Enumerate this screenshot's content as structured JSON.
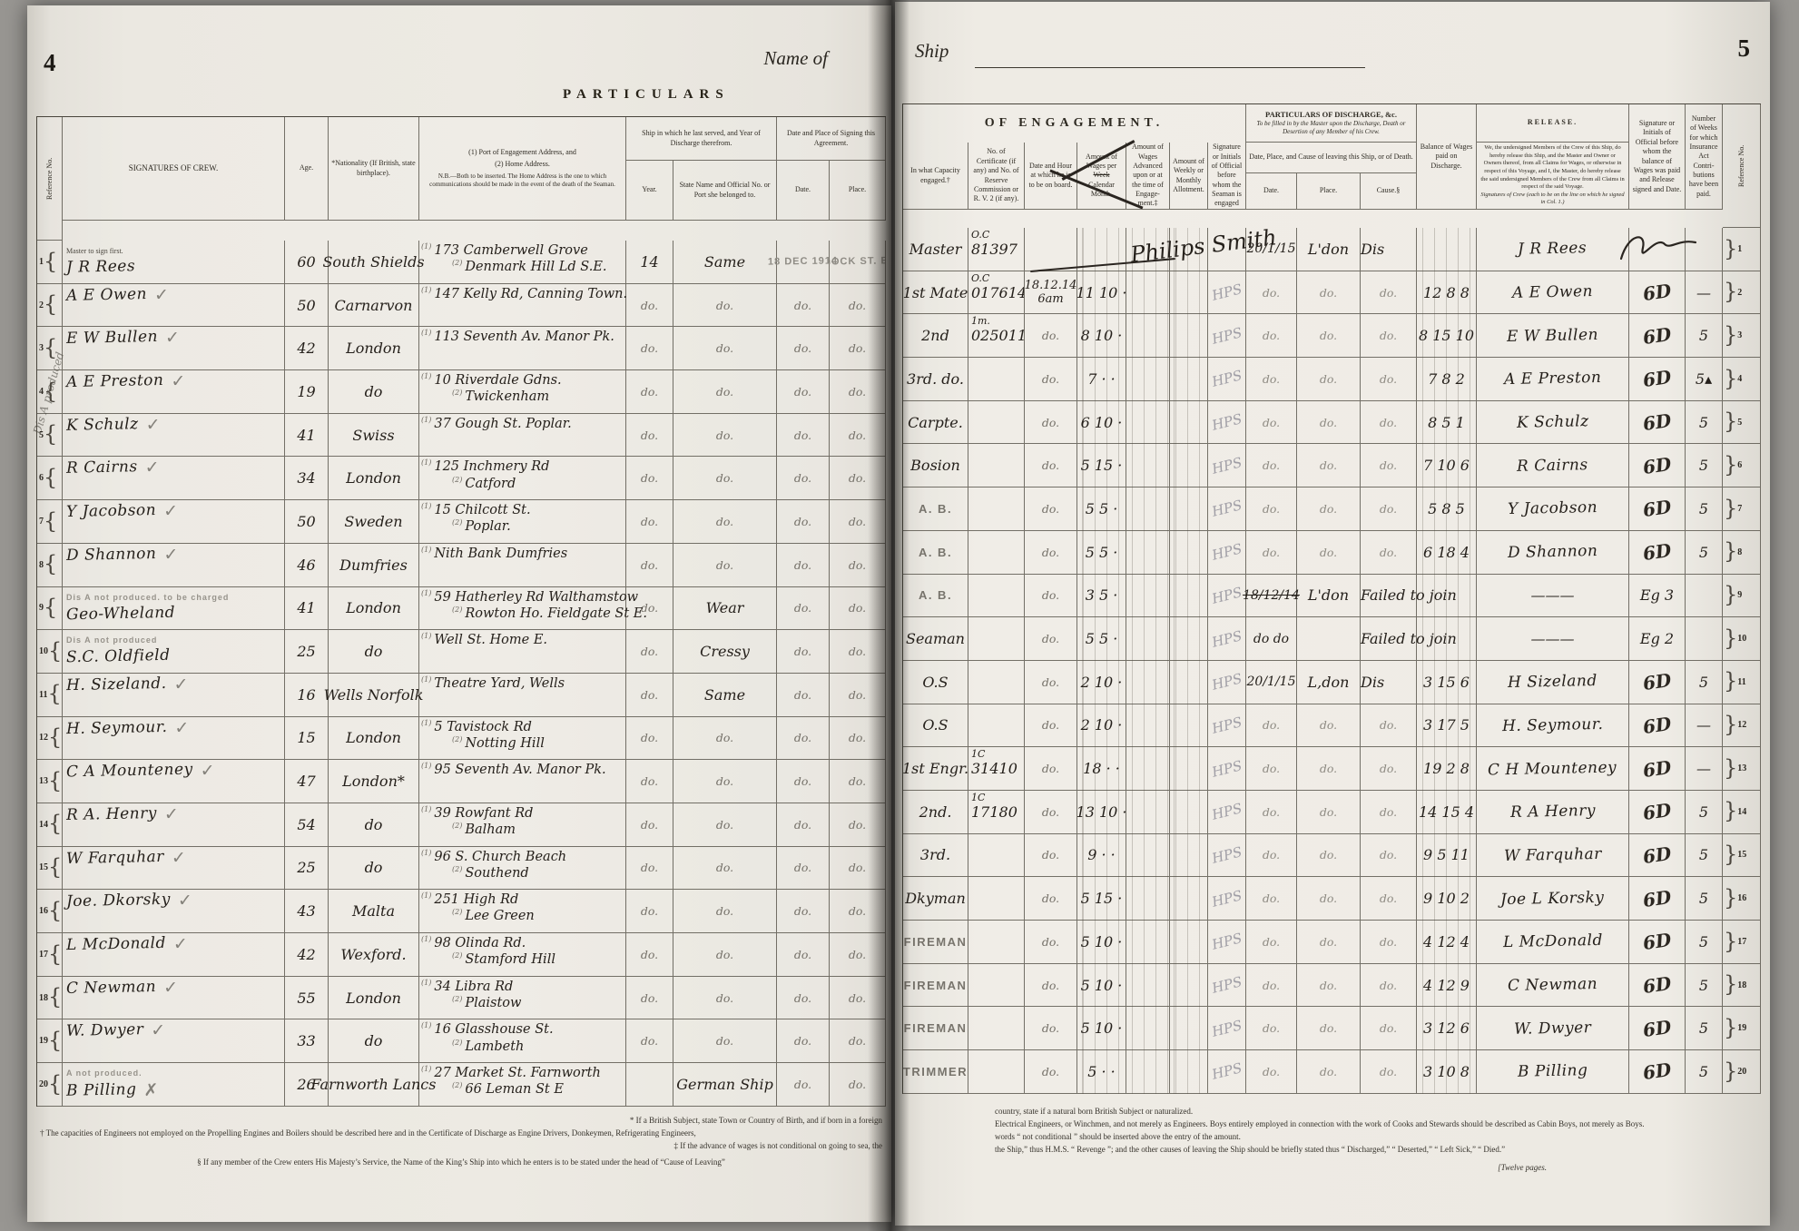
{
  "book": {
    "page_left_no": "4",
    "page_right_no": "5",
    "name_of_label": "Name of",
    "ship_label": "Ship",
    "pages_note": "[Twelve pages."
  },
  "left": {
    "title": "PARTICULARS",
    "margin_note": "Dis A produced",
    "stamp_date": "18 DEC 1914",
    "stamp_place": "DOCK ST. E.",
    "h": {
      "ref": "Reference No.",
      "sig": "SIGNATURES  OF  CREW.",
      "age": "Age.",
      "nat": "*Nationality (If British, state birthplace).",
      "addr1": "(1) Port of Engagement Address, and",
      "addr2": "(2) Home Address.",
      "addr3": "N.B.—Both to be inserted.  The Home Address is the one to which communications should be made in the event of the death of the Seaman.",
      "shipgrp": "Ship in which he last served, and Year of Discharge therefrom.",
      "year": "Year.",
      "name": "State Name and Official No. or Port she belonged to.",
      "dategrp": "Date and Place of Signing this Agreement.",
      "date": "Date.",
      "place": "Place."
    },
    "nums": [
      "1.",
      "2.",
      "3.",
      "4.",
      "5.",
      "6.",
      "7.",
      "8."
    ],
    "rows": [
      {
        "ref": "1",
        "note": "Master to sign first.",
        "sig": "J R Rees",
        "mark": "",
        "age": "60",
        "nat": "South Shields",
        "a1": "173 Camberwell Grove",
        "a2": "Denmark Hill Ld S.E.",
        "year": "14",
        "ship": "Same",
        "date": "STAMP",
        "place": "STAMP"
      },
      {
        "ref": "2",
        "sig": "A E Owen",
        "mark": "check",
        "age": "50",
        "nat": "Carnarvon",
        "a1": "147 Kelly Rd, Canning Town.",
        "a2": "",
        "year": "do.",
        "ship": "do.",
        "date": "do.",
        "place": "do."
      },
      {
        "ref": "3",
        "sig": "E W Bullen",
        "mark": "check",
        "age": "42",
        "nat": "London",
        "a1": "113 Seventh Av. Manor Pk.",
        "a2": "",
        "year": "do.",
        "ship": "do.",
        "date": "do.",
        "place": "do."
      },
      {
        "ref": "4",
        "sig": "A E Preston",
        "mark": "check",
        "age": "19",
        "nat": "do",
        "a1": "10 Riverdale Gdns.",
        "a2": "Twickenham",
        "year": "do.",
        "ship": "do.",
        "date": "do.",
        "place": "do."
      },
      {
        "ref": "5",
        "sig": "K Schulz",
        "mark": "check",
        "age": "41",
        "nat": "Swiss",
        "a1": "37 Gough St. Poplar.",
        "a2": "",
        "year": "do.",
        "ship": "do.",
        "date": "do.",
        "place": "do."
      },
      {
        "ref": "6",
        "sig": "R Cairns",
        "mark": "check",
        "age": "34",
        "nat": "London",
        "a1": "125 Inchmery Rd",
        "a2": "Catford",
        "year": "do.",
        "ship": "do.",
        "date": "do.",
        "place": "do."
      },
      {
        "ref": "7",
        "sig": "Y Jacobson",
        "mark": "check",
        "age": "50",
        "nat": "Sweden",
        "a1": "15 Chilcott St.",
        "a2": "Poplar.",
        "year": "do.",
        "ship": "do.",
        "date": "do.",
        "place": "do."
      },
      {
        "ref": "8",
        "sig": "D Shannon",
        "mark": "check",
        "age": "46",
        "nat": "Dumfries",
        "a1": "Nith Bank Dumfries",
        "a2": "",
        "year": "do.",
        "ship": "do.",
        "date": "do.",
        "place": "do."
      },
      {
        "ref": "9",
        "note": "Dis A not produced.      to be charged",
        "notestamp": true,
        "sig": "Geo-Wheland",
        "mark": "",
        "age": "41",
        "nat": "London",
        "a1": "59 Hatherley Rd Walthamstow",
        "a2": "Rowton Ho. Fieldgate St E.",
        "year": "do.",
        "ship": "Wear",
        "date": "do.",
        "place": "do."
      },
      {
        "ref": "10",
        "note": "Dis A not produced",
        "notestamp": true,
        "sig": "S.C. Oldfield",
        "mark": "",
        "age": "25",
        "nat": "do",
        "a1": "Well St. Home E.",
        "a2": "",
        "year": "do.",
        "ship": "Cressy",
        "date": "do.",
        "place": "do."
      },
      {
        "ref": "11",
        "sig": "H. Sizeland.",
        "mark": "check",
        "age": "16",
        "nat": "Wells Norfolk",
        "a1": "Theatre Yard, Wells",
        "a2": "",
        "year": "do.",
        "ship": "Same",
        "date": "do.",
        "place": "do."
      },
      {
        "ref": "12",
        "sig": "H. Seymour.",
        "mark": "check",
        "age": "15",
        "nat": "London",
        "a1": "5 Tavistock Rd",
        "a2": "Notting Hill",
        "year": "do.",
        "ship": "do.",
        "date": "do.",
        "place": "do."
      },
      {
        "ref": "13",
        "sig": "C A Mounteney",
        "mark": "check",
        "age": "47",
        "nat": "London*",
        "a1": "95 Seventh Av. Manor Pk.",
        "a2": "",
        "year": "do.",
        "ship": "do.",
        "date": "do.",
        "place": "do."
      },
      {
        "ref": "14",
        "sig": "R A. Henry",
        "mark": "check",
        "age": "54",
        "nat": "do",
        "a1": "39 Rowfant Rd",
        "a2": "Balham",
        "year": "do.",
        "ship": "do.",
        "date": "do.",
        "place": "do."
      },
      {
        "ref": "15",
        "sig": "W Farquhar",
        "mark": "check",
        "age": "25",
        "nat": "do",
        "a1": "96 S. Church Beach",
        "a2": "Southend",
        "year": "do.",
        "ship": "do.",
        "date": "do.",
        "place": "do."
      },
      {
        "ref": "16",
        "sig": "Joe. Dkorsky",
        "mark": "check",
        "age": "43",
        "nat": "Malta",
        "a1": "251 High Rd",
        "a2": "Lee Green",
        "year": "do.",
        "ship": "do.",
        "date": "do.",
        "place": "do."
      },
      {
        "ref": "17",
        "sig": "L McDonald",
        "mark": "check",
        "age": "42",
        "nat": "Wexford.",
        "a1": "98 Olinda Rd.",
        "a2": "Stamford Hill",
        "year": "do.",
        "ship": "do.",
        "date": "do.",
        "place": "do."
      },
      {
        "ref": "18",
        "sig": "C Newman",
        "mark": "check",
        "age": "55",
        "nat": "London",
        "a1": "34 Libra Rd",
        "a2": "Plaistow",
        "year": "do.",
        "ship": "do.",
        "date": "do.",
        "place": "do."
      },
      {
        "ref": "19",
        "sig": "W. Dwyer",
        "mark": "check",
        "age": "33",
        "nat": "do",
        "a1": "16 Glasshouse St.",
        "a2": "Lambeth",
        "year": "do.",
        "ship": "do.",
        "date": "do.",
        "place": "do."
      },
      {
        "ref": "20",
        "note": "A not produced.",
        "notestamp": true,
        "sig": "B Pilling",
        "mark": "cross",
        "age": "26",
        "nat": "Farnworth Lancs",
        "a1": "27 Market St. Farnworth",
        "a2": "66 Leman St E",
        "year": "",
        "ship": "German Ship",
        "date": "do.",
        "place": "do."
      }
    ],
    "footnotes": {
      "f1": "* If a British Subject, state Town or Country of Birth, and if born in a foreign",
      "f2": "† The capacities of Engineers not employed on the Propelling Engines and Boilers should be described here and in the Certificate of Discharge as Engine Drivers, Donkeymen, Refrigerating Engineers,",
      "f3": "‡ If the advance of wages is not conditional on going to sea, the",
      "f4": "§ If any member of the Crew enters His Majesty’s Service, the Name of the King’s Ship into which he enters is to be stated under the head of “Cause of Leaving”"
    }
  },
  "right": {
    "row1_scrawl": "Philips Smith",
    "h": {
      "eng_title": "OF  ENGAGEMENT.",
      "cap": "In what Capacity engaged.†",
      "cert": "No. of Certificate (if any) and No. of Reserve Commis­sion or R. V. 2 (if any).",
      "dh": "Date and Hour at which he is to be on board.",
      "wage1": "Amount of Wages per",
      "wage_strike": "Week",
      "wage2": "Calendar Month.",
      "adv": "Amount of Wages Advanced upon or at the time of Engage­ment.‡",
      "allot": "Amount of Weekly or Monthly Allotment.",
      "off": "Signa­ture or Initials of Official before whom the Sea­man is engaged",
      "dis_title1": "PARTICULARS  OF  DISCHARGE,  &c.",
      "dis_title2": "To be filled in by the Master upon the Discharge, Death or Desertion of any Member of his Crew.",
      "dis_grp": "Date, Place, and Cause of leaving this Ship, or of Death.",
      "ddate": "Date.",
      "dplace": "Place.",
      "dcause": "Cause.§",
      "bal": "Balance of Wages paid on Discharge.",
      "rel_title": "RELEASE.",
      "rel_body": "We, the undersigned Members of the Crew of this Ship, do hereby release this Ship, and the Master and Owner or Owners thereof, from all Claims for Wages, or otherwise in respect of this Voyage, and I, the Master, do hereby release the said undersigned Members of the Crew from all Claims in respect of the said Voyage.",
      "rel_body2": "Signatures of Crew (each to be on the line on which he signed in Col. 1.)",
      "off2": "Signature or Initials of Official before whom the balance of Wages was paid and Release signed and Date.",
      "weeks": "Number of Weeks for which Insur­ance Act Contri­butions have been paid.",
      "refno": "Reference No."
    },
    "nums": [
      "9.",
      "10.",
      "11.",
      "12.",
      "13.",
      "14.",
      "15.",
      "16.",
      "17.",
      "18.",
      "19.",
      "20.",
      "21.",
      "22."
    ],
    "rows": [
      {
        "ref": "1",
        "cap": "Master",
        "capcls": "hw",
        "certSup": "O.C",
        "cert": "81397",
        "dh": "",
        "wage": "",
        "off": "",
        "ddate": "20/1/15",
        "dplace": "L'don",
        "dcause": "Dis",
        "discls": "hw",
        "bal": "",
        "rel": "J R Rees",
        "off2": "scrawl",
        "weeks": ""
      },
      {
        "ref": "2",
        "cap": "1st Mate",
        "capcls": "hw",
        "certSup": "O.C",
        "cert": "017614",
        "dh": "18.12.14|6am",
        "dhcls": "hw",
        "wage": "11 10 ·",
        "off": "HPS",
        "ddate": "do.",
        "dplace": "do.",
        "dcause": "do.",
        "bal": "12 8 8",
        "rel": "A E Owen",
        "off2": "6D",
        "weeks": "—"
      },
      {
        "ref": "3",
        "cap": "2nd",
        "capcls": "hw",
        "certSup": "1m.",
        "cert": "025011",
        "dh": "do.",
        "wage": "8 10 ·",
        "off": "HPS",
        "ddate": "do.",
        "dplace": "do.",
        "dcause": "do.",
        "bal": "8 15 10",
        "rel": "E W Bullen",
        "off2": "6D",
        "weeks": "5"
      },
      {
        "ref": "4",
        "cap": "3rd. do.",
        "capcls": "hw",
        "cert": "",
        "dh": "do.",
        "wage": "7 · ·",
        "off": "HPS",
        "ddate": "do.",
        "dplace": "do.",
        "dcause": "do.",
        "bal": "7 8 2",
        "rel": "A E Preston",
        "off2": "6D",
        "weeks": "5▴"
      },
      {
        "ref": "5",
        "cap": "Carpte.",
        "capcls": "hw",
        "dh": "do.",
        "wage": "6 10 ·",
        "off": "HPS",
        "ddate": "do.",
        "dplace": "do.",
        "dcause": "do.",
        "bal": "8 5 1",
        "rel": "K Schulz",
        "off2": "6D",
        "weeks": "5"
      },
      {
        "ref": "6",
        "cap": "Bosion",
        "capcls": "hw",
        "dh": "do.",
        "wage": "5 15 ·",
        "off": "HPS",
        "ddate": "do.",
        "dplace": "do.",
        "dcause": "do.",
        "bal": "7 10 6",
        "rel": "R Cairns",
        "off2": "6D",
        "weeks": "5"
      },
      {
        "ref": "7",
        "cap": "A. B.",
        "capcls": "stamp",
        "dh": "do.",
        "wage": "5 5 ·",
        "off": "HPS",
        "ddate": "do.",
        "dplace": "do.",
        "dcause": "do.",
        "bal": "5 8 5",
        "rel": "Y Jacobson",
        "off2": "6D",
        "weeks": "5"
      },
      {
        "ref": "8",
        "cap": "A. B.",
        "capcls": "stamp",
        "dh": "do.",
        "wage": "5 5 ·",
        "off": "HPS",
        "ddate": "do.",
        "dplace": "do.",
        "dcause": "do.",
        "bal": "6 18 4",
        "rel": "D Shannon",
        "off2": "6D",
        "weeks": "5"
      },
      {
        "ref": "9",
        "cap": "A. B.",
        "capcls": "stamp",
        "dh": "do.",
        "wage": "3 5 ·",
        "off": "HPS",
        "ddate": "18/12/14",
        "ddatecls": "strike",
        "dplace": "L'don",
        "dcause": "Failed to join",
        "discls": "hw",
        "bal": "",
        "rel": "———",
        "relcls": "dash",
        "off2": "Eg 3",
        "weeks": ""
      },
      {
        "ref": "10",
        "cap": "Seaman",
        "capcls": "hw",
        "dh": "do.",
        "wage": "5 5 ·",
        "off": "HPS",
        "ddate": "do do",
        "ddatecls": "hwdark",
        "dplace": "",
        "dcause": "Failed to join",
        "discls": "hw",
        "bal": "",
        "rel": "———",
        "relcls": "dash",
        "off2": "Eg 2",
        "weeks": ""
      },
      {
        "ref": "11",
        "cap": "O.S",
        "capcls": "hw",
        "dh": "do.",
        "wage": "2 10 ·",
        "off": "HPS",
        "ddate": "20/1/15",
        "ddatecls": "hwdark",
        "dplace": "L,don",
        "dcause": "Dis",
        "discls": "hw",
        "bal": "3 15 6",
        "rel": "H Sizeland",
        "off2": "6D",
        "weeks": "5"
      },
      {
        "ref": "12",
        "cap": "O.S",
        "capcls": "hw",
        "dh": "do.",
        "wage": "2 10 ·",
        "off": "HPS",
        "ddate": "do.",
        "dplace": "do.",
        "dcause": "do.",
        "bal": "3 17 5",
        "rel": "H. Seymour.",
        "off2": "6D",
        "weeks": "—"
      },
      {
        "ref": "13",
        "cap": "1st Engr.",
        "capcls": "hw",
        "certSup": "1C",
        "cert": "31410",
        "dh": "do.",
        "wage": "18 · ·",
        "off": "HPS",
        "ddate": "do.",
        "dplace": "do.",
        "dcause": "do.",
        "bal": "19 2 8",
        "rel": "C H Mounteney",
        "off2": "6D",
        "weeks": "—"
      },
      {
        "ref": "14",
        "cap": "2nd.",
        "capcls": "hw",
        "certSup": "1C",
        "cert": "17180",
        "dh": "do.",
        "wage": "13 10 ·",
        "off": "HPS",
        "ddate": "do.",
        "dplace": "do.",
        "dcause": "do.",
        "bal": "14 15 4",
        "rel": "R A Henry",
        "off2": "6D",
        "weeks": "5"
      },
      {
        "ref": "15",
        "cap": "3rd.",
        "capcls": "hw",
        "dh": "do.",
        "wage": "9 · ·",
        "off": "HPS",
        "ddate": "do.",
        "dplace": "do.",
        "dcause": "do.",
        "bal": "9 5 11",
        "rel": "W Farquhar",
        "off2": "6D",
        "weeks": "5"
      },
      {
        "ref": "16",
        "cap": "Dkyman",
        "capcls": "hw",
        "dh": "do.",
        "wage": "5 15 ·",
        "off": "HPS",
        "ddate": "do.",
        "dplace": "do.",
        "dcause": "do.",
        "bal": "9 10 2",
        "rel": "Joe L Korsky",
        "off2": "6D",
        "weeks": "5"
      },
      {
        "ref": "17",
        "cap": "FIREMAN",
        "capcls": "stamp",
        "dh": "do.",
        "wage": "5 10 ·",
        "off": "HPS",
        "ddate": "do.",
        "dplace": "do.",
        "dcause": "do.",
        "bal": "4 12 4",
        "rel": "L McDonald",
        "off2": "6D",
        "weeks": "5"
      },
      {
        "ref": "18",
        "cap": "FIREMAN",
        "capcls": "stamp",
        "dh": "do.",
        "wage": "5 10 ·",
        "off": "HPS",
        "ddate": "do.",
        "dplace": "do.",
        "dcause": "do.",
        "bal": "4 12 9",
        "rel": "C Newman",
        "off2": "6D",
        "weeks": "5"
      },
      {
        "ref": "19",
        "cap": "FIREMAN",
        "capcls": "stamp",
        "dh": "do.",
        "wage": "5 10 ·",
        "off": "HPS",
        "ddate": "do.",
        "dplace": "do.",
        "dcause": "do.",
        "bal": "3 12 6",
        "rel": "W. Dwyer",
        "off2": "6D",
        "weeks": "5"
      },
      {
        "ref": "20",
        "cap": "TRIMMER",
        "capcls": "stamp",
        "dh": "do.",
        "wage": "5 · ·",
        "off": "HPS",
        "ddate": "do.",
        "dplace": "do.",
        "dcause": "do.",
        "bal": "3 10 8",
        "rel": "B Pilling",
        "off2": "6D",
        "weeks": "5"
      }
    ],
    "footnotes": {
      "r1": "country, state if a natural born British Subject or naturalized.",
      "r2": "Electrical Engineers, or Winchmen, and not merely as Engineers.      Boys entirely employed in connection with the work of Cooks and Stewards should be described as Cabin Boys, not merely as Boys.",
      "r3": "words “ not conditional ” should be inserted above the entry of the amount.",
      "r4": "the Ship,” thus H.M.S. “ Revenge ”; and the other causes of leaving the Ship should be briefly stated thus “ Discharged,” “ Deserted,” “ Left Sick,” “ Died.”"
    }
  }
}
